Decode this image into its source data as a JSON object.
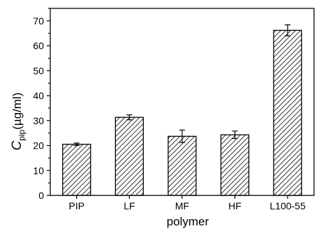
{
  "chart_data": {
    "type": "bar",
    "categories": [
      "PIP",
      "LF",
      "MF",
      "HF",
      "L100-55"
    ],
    "values": [
      20.5,
      31.3,
      23.7,
      24.3,
      66.2
    ],
    "errors": [
      0.5,
      1.0,
      2.5,
      1.5,
      2.2
    ],
    "xlabel": "polymer",
    "ylabel": {
      "symbol": "C",
      "subscript": "pip",
      "unit": "(µg/ml)"
    },
    "ylim": [
      0,
      75
    ],
    "yticks": [
      0,
      10,
      20,
      30,
      40,
      50,
      60,
      70
    ],
    "grid": false,
    "bar_fill": "diagonal-hatch",
    "colors": {
      "bar_edge": "#000000",
      "hatch": "#000000",
      "background": "#ffffff"
    }
  }
}
